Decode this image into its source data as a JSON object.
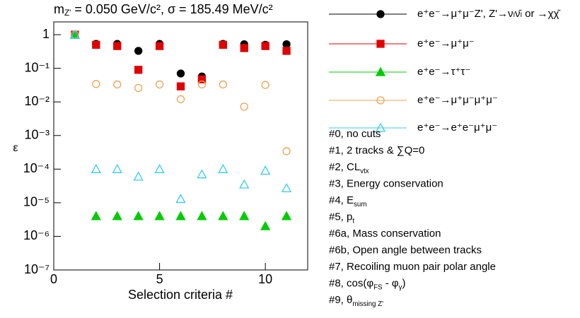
{
  "chart_data": {
    "type": "scatter",
    "title": [
      "m",
      "Z'",
      " = 0.050 GeV/c², σ = 185.49 MeV/c²"
    ],
    "x_label": "Selection criteria #",
    "y_label": "ε",
    "log_y": true,
    "xlim": [
      0,
      12
    ],
    "ylim": [
      1e-07,
      2.4
    ],
    "xticks": [
      0,
      5,
      10
    ],
    "yticks": [
      1,
      {
        "value": 0.1,
        "label": "10⁻¹"
      },
      {
        "value": 0.01,
        "label": "10⁻²"
      },
      {
        "value": 0.001,
        "label": "10⁻³"
      },
      {
        "value": 0.0001,
        "label": "10⁻⁴"
      },
      {
        "value": 1e-05,
        "label": "10⁻⁵"
      },
      {
        "value": 1e-06,
        "label": "10⁻⁶"
      },
      {
        "value": 1e-07,
        "label": "10⁻⁷"
      }
    ],
    "x": [
      1,
      2,
      3,
      4,
      5,
      6,
      7,
      8,
      9,
      10,
      11
    ],
    "series": [
      {
        "name": "e⁺e⁻→μ⁺μ⁻Z', Z'→νₗν̄ₗ or →χχ̄",
        "color": "#000000",
        "marker": "circle",
        "filled": true,
        "values": [
          1,
          0.53,
          0.53,
          0.33,
          0.53,
          0.07,
          0.057,
          0.53,
          0.52,
          0.5,
          0.52
        ]
      },
      {
        "name": "e⁺e⁻→μ⁺μ⁻",
        "color": "#e00000",
        "marker": "square",
        "filled": true,
        "values": [
          1,
          0.5,
          0.46,
          0.09,
          0.46,
          0.029,
          0.047,
          0.5,
          0.4,
          0.46,
          0.33
        ]
      },
      {
        "name": "e⁺e⁻→τ⁺τ⁻",
        "color": "#00cc00",
        "marker": "triangle",
        "filled": true,
        "values": [
          1,
          4e-06,
          4e-06,
          4e-06,
          4e-06,
          4e-06,
          4e-06,
          4e-06,
          4e-06,
          2e-06,
          4e-06
        ]
      },
      {
        "name": "e⁺e⁻→μ⁺μ⁻μ⁺μ⁻",
        "color": "#f0a050",
        "marker": "circle",
        "filled": false,
        "values": [
          1,
          0.034,
          0.033,
          0.026,
          0.033,
          0.012,
          0.033,
          0.033,
          0.0072,
          0.032,
          0.00034
        ]
      },
      {
        "name": "e⁺e⁻→e⁺e⁻μ⁺μ⁻",
        "color": "#33ccee",
        "marker": "triangle",
        "filled": false,
        "values": [
          1,
          0.0001,
          0.0001,
          6e-05,
          0.0001,
          1.3e-05,
          7e-05,
          0.0001,
          3.5e-05,
          9e-05,
          2.7e-05
        ]
      }
    ],
    "annotations": [
      [
        "#0, no cuts"
      ],
      [
        "#1, 2 tracks & ∑Q=0"
      ],
      [
        "#2, CL",
        "vtx"
      ],
      [
        "#3, Energy conservation"
      ],
      [
        "#4, E",
        "sum"
      ],
      [
        "#5, p",
        "t"
      ],
      [
        "#6a, Mass conservation"
      ],
      [
        "#6b, Open angle between tracks"
      ],
      [
        "#7, Recoiling muon pair polar angle"
      ],
      [
        "#8, cos(φ",
        "FS",
        " - φ",
        "γ",
        ")"
      ],
      [
        "#9, θ",
        "missing Z'"
      ]
    ]
  }
}
